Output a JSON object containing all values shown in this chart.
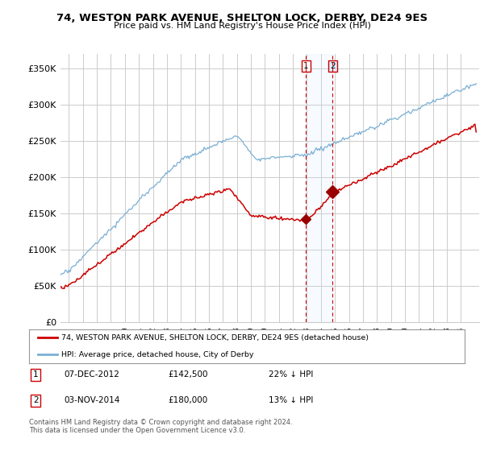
{
  "title": "74, WESTON PARK AVENUE, SHELTON LOCK, DERBY, DE24 9ES",
  "subtitle": "Price paid vs. HM Land Registry's House Price Index (HPI)",
  "ylim": [
    0,
    370000
  ],
  "yticks": [
    0,
    50000,
    100000,
    150000,
    200000,
    250000,
    300000,
    350000
  ],
  "ytick_labels": [
    "£0",
    "£50K",
    "£100K",
    "£150K",
    "£200K",
    "£250K",
    "£300K",
    "£350K"
  ],
  "sale1_date_label": "07-DEC-2012",
  "sale1_price": 142500,
  "sale1_pct": "22% ↓ HPI",
  "sale1_price_label": "£142,500",
  "sale2_date_label": "03-NOV-2014",
  "sale2_price": 180000,
  "sale2_pct": "13% ↓ HPI",
  "sale2_price_label": "£180,000",
  "legend_line1": "74, WESTON PARK AVENUE, SHELTON LOCK, DERBY, DE24 9ES (detached house)",
  "legend_line2": "HPI: Average price, detached house, City of Derby",
  "footer": "Contains HM Land Registry data © Crown copyright and database right 2024.\nThis data is licensed under the Open Government Licence v3.0.",
  "line_red_color": "#cc0000",
  "line_blue_color": "#7aafd4",
  "marker_color": "#990000",
  "sale1_x": 2012.92,
  "sale2_x": 2014.84,
  "background_color": "#ffffff",
  "grid_color": "#cccccc",
  "xlim_left": 1995.4,
  "xlim_right": 2025.3
}
